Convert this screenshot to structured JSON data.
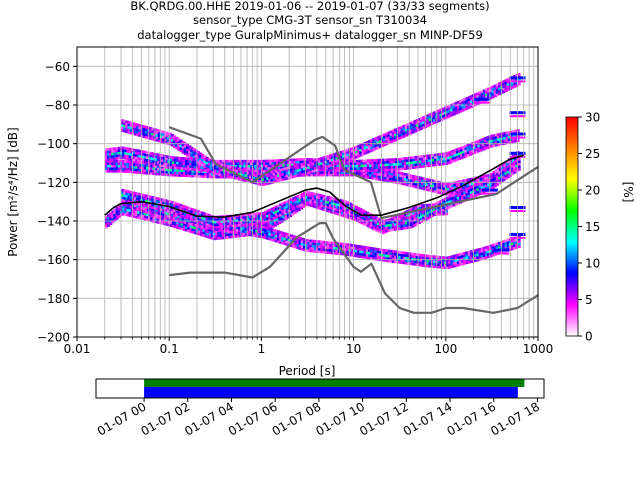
{
  "title_lines": [
    "BK.QRDG.00.HHE   2019-01-06 -- 2019-01-07  (33/33 segments)",
    "sensor_type CMG-3T sensor_sn T310034",
    "datalogger_type GuralpMinimus+ datalogger_sn MINP-DF59"
  ],
  "chart_data": [
    {
      "type": "heatmap",
      "subtype": "probabilistic-power-spectral-density",
      "xlabel": "Period [s]",
      "ylabel": "Power [m²/s⁴/Hz] [dB]",
      "x_scale": "log",
      "xlim": [
        0.01,
        1000
      ],
      "ylim": [
        -200,
        -50
      ],
      "x_ticks": [
        0.01,
        0.1,
        1,
        10,
        100,
        1000
      ],
      "x_tick_labels": [
        "0.01",
        "0.1",
        "1",
        "10",
        "100",
        "1000"
      ],
      "y_ticks": [
        -200,
        -180,
        -160,
        -140,
        -120,
        -100,
        -80,
        -60
      ],
      "y_tick_labels": [
        "−200",
        "−180",
        "−160",
        "−140",
        "−120",
        "−100",
        "−80",
        "−60"
      ],
      "grid": true,
      "colormap": "pqlx",
      "colorbar": {
        "label": "[%]",
        "range": [
          0,
          30
        ],
        "ticks": [
          0,
          5,
          10,
          15,
          20,
          25,
          30
        ],
        "tick_labels": [
          "0",
          "5",
          "10",
          "15",
          "20",
          "25",
          "30"
        ],
        "colors": [
          "#ffffff",
          "#ff00ff",
          "#0000ff",
          "#00ffff",
          "#00ff00",
          "#ffff00",
          "#ff8000",
          "#ff0000"
        ]
      },
      "series": [
        {
          "role": "noise-model-high",
          "color": "#666666",
          "x": [
            0.1,
            0.22,
            0.32,
            0.8,
            3.8,
            4.6,
            6.3,
            7.9,
            15.4,
            20,
            354,
            1000
          ],
          "y": [
            -91.5,
            -97.4,
            -110.5,
            -120,
            -98,
            -96.5,
            -101,
            -113.5,
            -120,
            -138.5,
            -126,
            -112
          ]
        },
        {
          "role": "noise-model-low",
          "color": "#666666",
          "x": [
            0.1,
            0.17,
            0.4,
            0.8,
            1.24,
            2.4,
            4.3,
            5,
            6,
            10,
            12,
            15.6,
            21.9,
            31.6,
            45,
            70,
            101,
            154,
            328,
            600,
            1000
          ],
          "y": [
            -168,
            -166.7,
            -166.7,
            -169.2,
            -163.7,
            -148.6,
            -141.1,
            -141.1,
            -149,
            -163.8,
            -166.2,
            -162.1,
            -177.5,
            -185,
            -187.5,
            -187.5,
            -185,
            -185,
            -187.5,
            -185,
            -178.4
          ]
        },
        {
          "role": "mean",
          "color": "#000000",
          "x": [
            0.02,
            0.025,
            0.03,
            0.05,
            0.1,
            0.2,
            0.4,
            0.8,
            1.5,
            3,
            4,
            5.5,
            8,
            12,
            20,
            40,
            80,
            150,
            300,
            500,
            700
          ],
          "y": [
            -137,
            -133,
            -131,
            -130,
            -132.5,
            -137.5,
            -138,
            -135.5,
            -130,
            -124,
            -123,
            -125,
            -132,
            -137,
            -137,
            -133,
            -128,
            -122,
            -114,
            -108,
            -106
          ]
        }
      ],
      "pdf_bands": [
        {
          "x": [
            0.02,
            0.03,
            0.1,
            0.3,
            1,
            3,
            10,
            30,
            100,
            300,
            600
          ],
          "y": [
            -111,
            -111,
            -113,
            -114,
            -114,
            -113,
            -113,
            -117,
            -123,
            -118,
            -106
          ]
        },
        {
          "x": [
            0.02,
            0.03,
            0.1,
            0.3,
            1,
            3,
            10,
            30,
            100,
            300,
            600
          ],
          "y": [
            -105,
            -104,
            -109,
            -111,
            -111,
            -110,
            -111,
            -110,
            -107,
            -98,
            -95
          ]
        },
        {
          "x": [
            0.02,
            0.03,
            0.1,
            0.3,
            1,
            2,
            3,
            10,
            20,
            50,
            100
          ],
          "y": [
            -140,
            -133,
            -139,
            -146,
            -143,
            -134,
            -128,
            -136,
            -143,
            -134,
            -133
          ]
        },
        {
          "x": [
            0.03,
            0.1,
            0.3,
            1,
            3,
            10,
            30,
            100,
            300,
            600
          ],
          "y": [
            -90,
            -97,
            -112,
            -118,
            -112,
            -104,
            -94,
            -83,
            -73,
            -66
          ]
        },
        {
          "x": [
            0.03,
            0.1,
            0.3,
            1,
            3,
            8,
            20,
            60,
            100,
            250,
            600
          ],
          "y": [
            -128,
            -136,
            -141,
            -145,
            -152,
            -154,
            -157,
            -160,
            -161,
            -156,
            -150
          ]
        },
        {
          "x": [
            0.03,
            0.1,
            0.3,
            1,
            3,
            8,
            20,
            40,
            100,
            300,
            600
          ],
          "y": [
            -126,
            -132,
            -140,
            -138,
            -127,
            -132,
            -142,
            -140,
            -130,
            -120,
            -110
          ]
        }
      ],
      "pdf_peak_marks": [
        {
          "x": 600,
          "y": -66
        },
        {
          "x": 600,
          "y": -84
        },
        {
          "x": 600,
          "y": -95
        },
        {
          "x": 600,
          "y": -105
        },
        {
          "x": 600,
          "y": -133
        },
        {
          "x": 600,
          "y": -147
        },
        {
          "x": 400,
          "y": -155
        },
        {
          "x": 300,
          "y": -124
        },
        {
          "x": 250,
          "y": -77
        }
      ]
    },
    {
      "type": "bar",
      "subtype": "data-coverage-timeline",
      "x_tick_labels": [
        "01-07 00",
        "01-07 02",
        "01-07 04",
        "01-07 06",
        "01-07 08",
        "01-07 10",
        "01-07 12",
        "01-07 14",
        "01-07 16",
        "01-07 18"
      ],
      "xlim_hours": [
        -2.2,
        18.3
      ],
      "series": [
        {
          "color": "#008000",
          "x": [
            0,
            17.4
          ]
        },
        {
          "color": "#0000ff",
          "x": [
            0,
            17.1
          ]
        }
      ]
    }
  ]
}
